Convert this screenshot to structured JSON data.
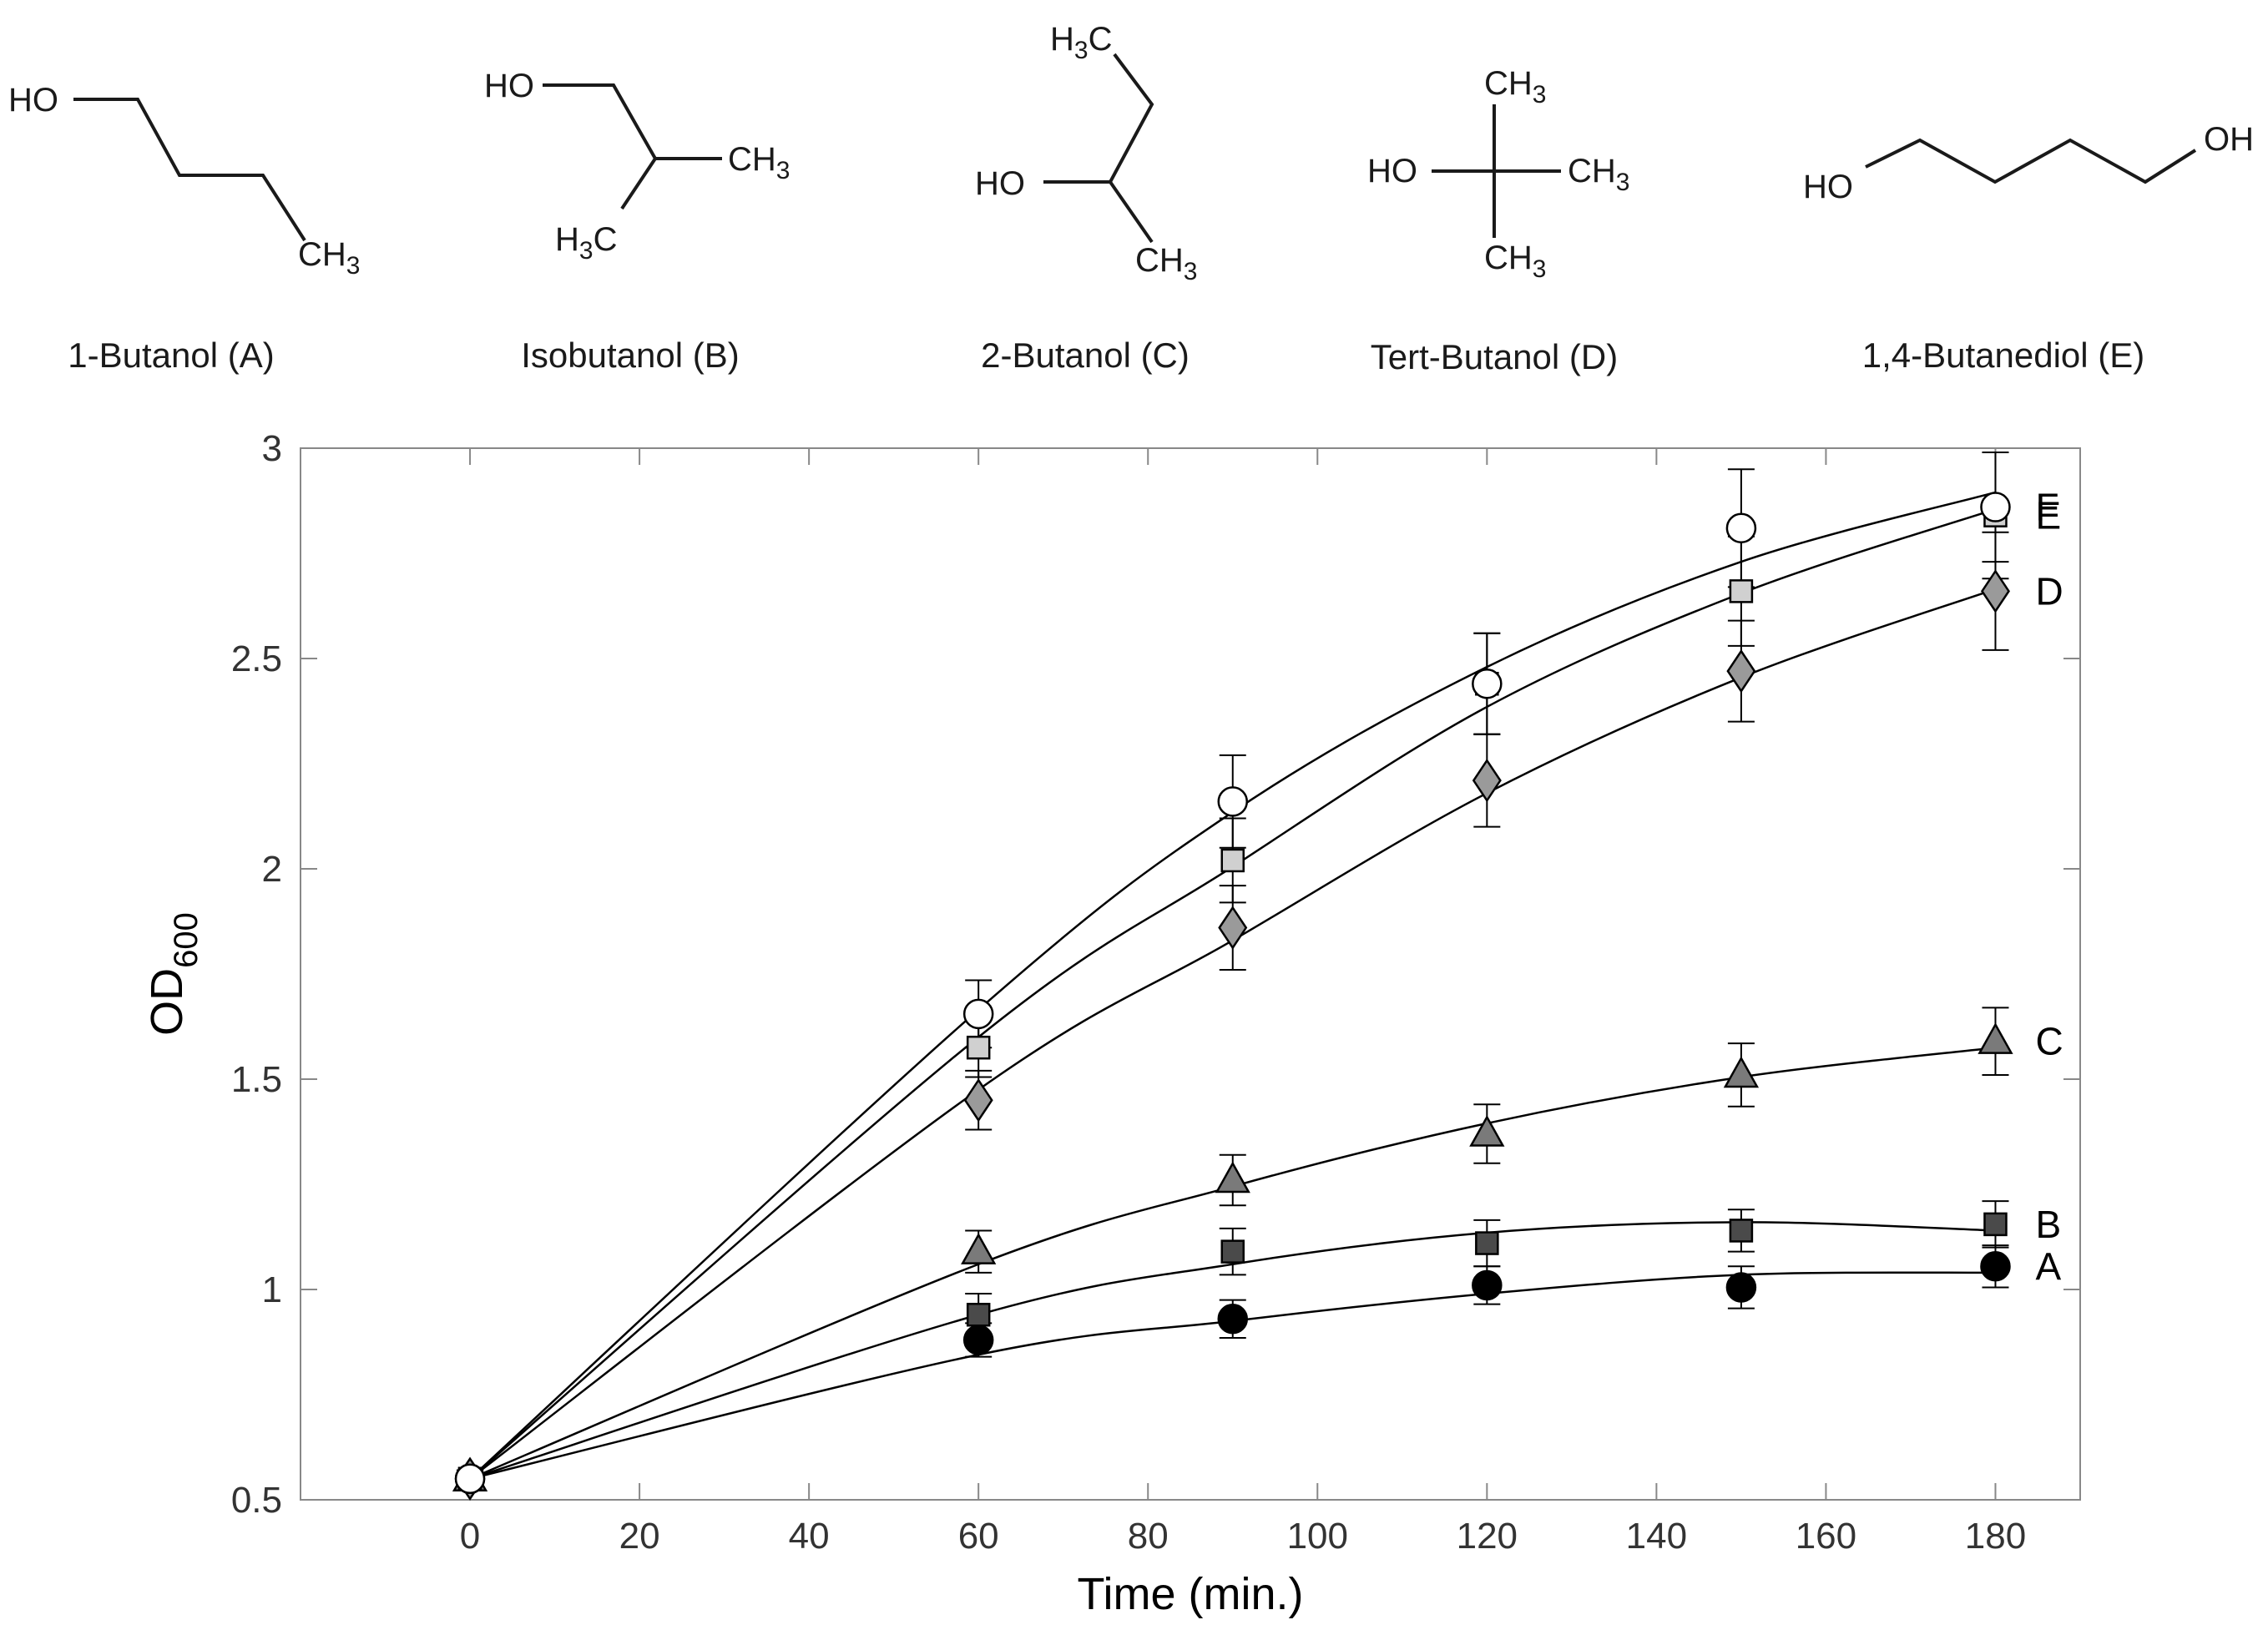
{
  "structures": [
    {
      "name": "1-Butanol (A)",
      "labels": [
        "HO",
        "CH",
        "3"
      ]
    },
    {
      "name": "Isobutanol (B)",
      "labels": [
        "HO",
        "CH",
        "3",
        "H",
        "3",
        "C"
      ]
    },
    {
      "name": "2-Butanol (C)",
      "labels": [
        "H",
        "3",
        "C",
        "HO",
        "CH",
        "3"
      ]
    },
    {
      "name": "Tert-Butanol (D)",
      "labels": [
        "CH",
        "3",
        "HO",
        "CH",
        "3",
        "CH",
        "3"
      ]
    },
    {
      "name": "1,4-Butanediol (E)",
      "labels": [
        "HO",
        "OH"
      ]
    }
  ],
  "chart_data": {
    "type": "scatter",
    "xlabel": "Time (min.)",
    "ylabel": "OD",
    "ylabel_subscript": "600",
    "xlim": [
      -20,
      190
    ],
    "ylim": [
      0.5,
      3
    ],
    "xticks": [
      0,
      20,
      40,
      60,
      80,
      100,
      120,
      140,
      160,
      180
    ],
    "yticks": [
      0.5,
      1,
      1.5,
      2,
      2.5,
      3
    ],
    "ytick_labels": [
      "0.5",
      "1",
      "1.5",
      "2",
      "2.5",
      "3"
    ],
    "grid": false,
    "fit_curves": true,
    "series": [
      {
        "name": "A",
        "marker": "circle",
        "fill": "#000000",
        "x": [
          0,
          60,
          90,
          120,
          150,
          180
        ],
        "y": [
          0.55,
          0.88,
          0.93,
          1.01,
          1.005,
          1.055
        ],
        "err": [
          0.02,
          0.04,
          0.045,
          0.045,
          0.05,
          0.05
        ],
        "fit_y": [
          0.55,
          0.845,
          0.925,
          0.99,
          1.035,
          1.04
        ]
      },
      {
        "name": "B",
        "marker": "square",
        "fill": "#4a4a4a",
        "x": [
          0,
          60,
          90,
          120,
          150,
          180
        ],
        "y": [
          0.55,
          0.94,
          1.09,
          1.11,
          1.14,
          1.155
        ],
        "err": [
          0.02,
          0.05,
          0.055,
          0.055,
          0.05,
          0.055
        ],
        "fit_y": [
          0.55,
          0.94,
          1.06,
          1.135,
          1.16,
          1.14
        ]
      },
      {
        "name": "C",
        "marker": "triangle",
        "fill": "#7a7a7a",
        "x": [
          0,
          60,
          90,
          120,
          150,
          180
        ],
        "y": [
          0.55,
          1.09,
          1.26,
          1.37,
          1.51,
          1.59
        ],
        "err": [
          0.02,
          0.05,
          0.06,
          0.07,
          0.075,
          0.08
        ],
        "fit_y": [
          0.55,
          1.06,
          1.245,
          1.395,
          1.505,
          1.575
        ]
      },
      {
        "name": "D",
        "marker": "diamond",
        "fill": "#9a9a9a",
        "x": [
          0,
          60,
          90,
          120,
          150,
          180
        ],
        "y": [
          0.55,
          1.45,
          1.86,
          2.21,
          2.47,
          2.66
        ],
        "err": [
          0.02,
          0.07,
          0.1,
          0.11,
          0.12,
          0.14
        ],
        "fit_y": [
          0.55,
          1.475,
          1.83,
          2.18,
          2.455,
          2.665
        ]
      },
      {
        "name": "E",
        "marker": "square",
        "fill": "#d0d0d0",
        "x": [
          0,
          60,
          90,
          120,
          150,
          180
        ],
        "y": [
          0.55,
          1.575,
          2.02,
          2.44,
          2.66,
          2.84
        ],
        "err": [
          0.02,
          0.07,
          0.1,
          0.12,
          0.13,
          0.15
        ],
        "fit_y": [
          0.55,
          1.6,
          2.005,
          2.385,
          2.655,
          2.855
        ]
      },
      {
        "name": "F",
        "marker": "circle",
        "fill": "#ffffff",
        "x": [
          0,
          60,
          90,
          120,
          150,
          180
        ],
        "y": [
          0.55,
          1.655,
          2.16,
          2.44,
          2.81,
          2.86
        ],
        "err": [
          0.02,
          0.08,
          0.11,
          0.12,
          0.14,
          0.13
        ],
        "fit_y": [
          0.55,
          1.665,
          2.135,
          2.48,
          2.73,
          2.895
        ]
      }
    ]
  }
}
